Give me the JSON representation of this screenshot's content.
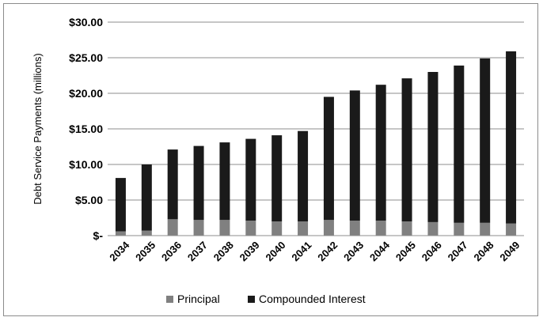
{
  "chart_data": {
    "type": "bar",
    "stacked": true,
    "title": "",
    "xlabel": "",
    "ylabel": "Debt Service Payments  (millions)",
    "ylim": [
      0,
      30
    ],
    "yticks": [
      0,
      5,
      10,
      15,
      20,
      25,
      30
    ],
    "ytick_labels": [
      "$-",
      "$5.00",
      "$10.00",
      "$15.00",
      "$20.00",
      "$25.00",
      "$30.00"
    ],
    "grid": true,
    "legend_position": "bottom",
    "categories": [
      "2034",
      "2035",
      "2036",
      "2037",
      "2038",
      "2039",
      "2040",
      "2041",
      "2042",
      "2043",
      "2044",
      "2045",
      "2046",
      "2047",
      "2048",
      "2049"
    ],
    "series": [
      {
        "name": "Principal",
        "color": "#808080",
        "values": [
          0.6,
          0.7,
          2.3,
          2.2,
          2.2,
          2.1,
          2.0,
          2.0,
          2.2,
          2.1,
          2.1,
          2.0,
          1.9,
          1.8,
          1.8,
          1.7
        ]
      },
      {
        "name": "Compounded Interest",
        "color": "#1a1a1a",
        "values": [
          7.5,
          9.3,
          9.8,
          10.4,
          10.9,
          11.5,
          12.1,
          12.7,
          17.3,
          18.3,
          19.1,
          20.1,
          21.1,
          22.1,
          23.1,
          24.2
        ]
      }
    ]
  }
}
